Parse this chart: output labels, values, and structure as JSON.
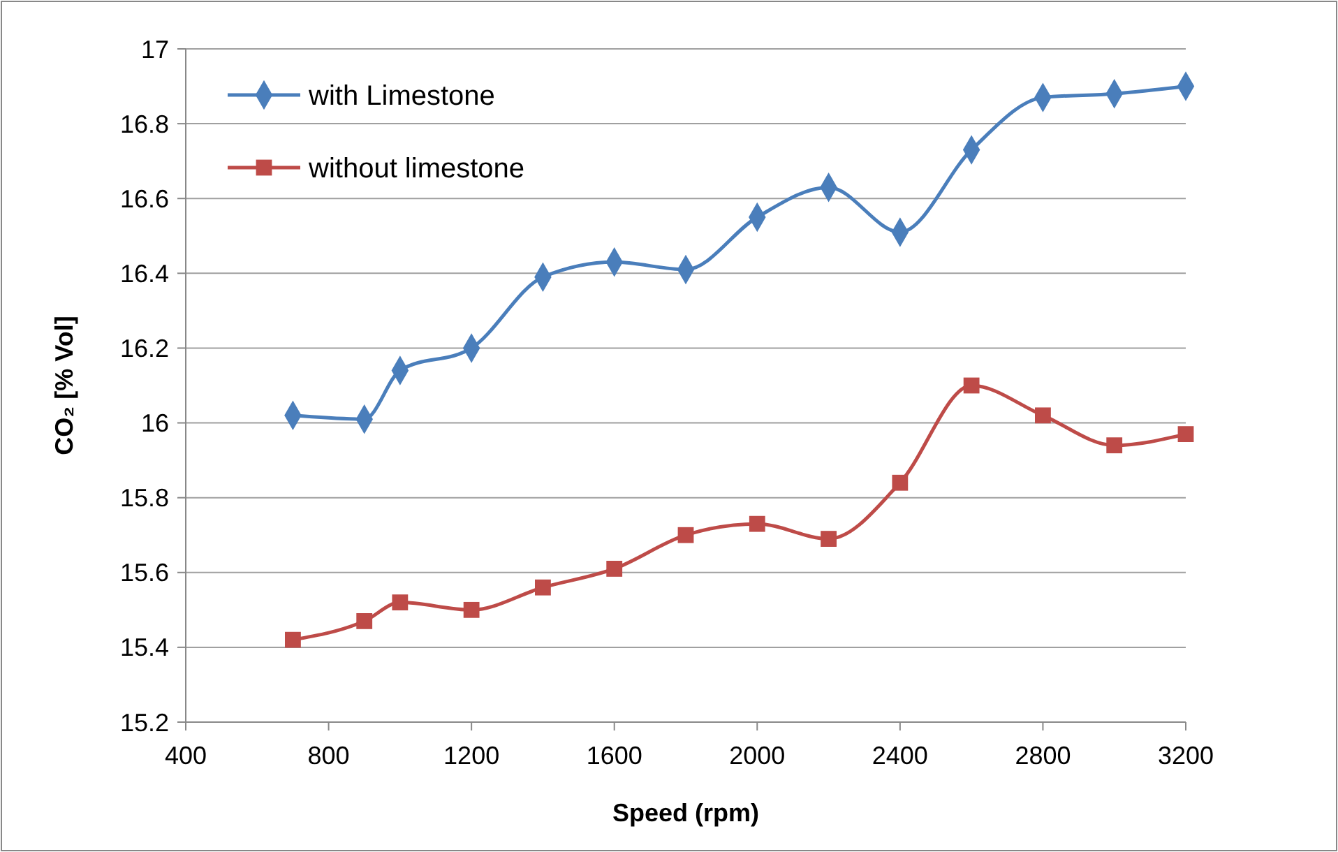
{
  "chart_data": {
    "type": "line",
    "xlabel": "Speed (rpm)",
    "ylabel": "CO₂ [% Vol]",
    "x": [
      700,
      900,
      1000,
      1200,
      1400,
      1600,
      1800,
      2000,
      2200,
      2400,
      2600,
      2800,
      3000,
      3200
    ],
    "series": [
      {
        "name": "with Limestone",
        "color": "#4a7ebb",
        "marker": "diamond",
        "values": [
          16.02,
          16.01,
          16.14,
          16.2,
          16.39,
          16.43,
          16.41,
          16.55,
          16.63,
          16.51,
          16.73,
          16.87,
          16.88,
          16.9
        ]
      },
      {
        "name": "without limestone",
        "color": "#be4b48",
        "marker": "square",
        "values": [
          15.42,
          15.47,
          15.52,
          15.5,
          15.56,
          15.61,
          15.7,
          15.73,
          15.69,
          15.84,
          16.1,
          16.02,
          15.94,
          15.97
        ]
      }
    ],
    "xlim": [
      400,
      3200
    ],
    "xticks": [
      400,
      800,
      1200,
      1600,
      2000,
      2400,
      2800,
      3200
    ],
    "ylim": [
      15.2,
      17
    ],
    "yticks": [
      15.2,
      15.4,
      15.6,
      15.8,
      16,
      16.2,
      16.4,
      16.6,
      16.8,
      17
    ],
    "grid": "y",
    "legend": "top left",
    "line_style": "solid"
  }
}
